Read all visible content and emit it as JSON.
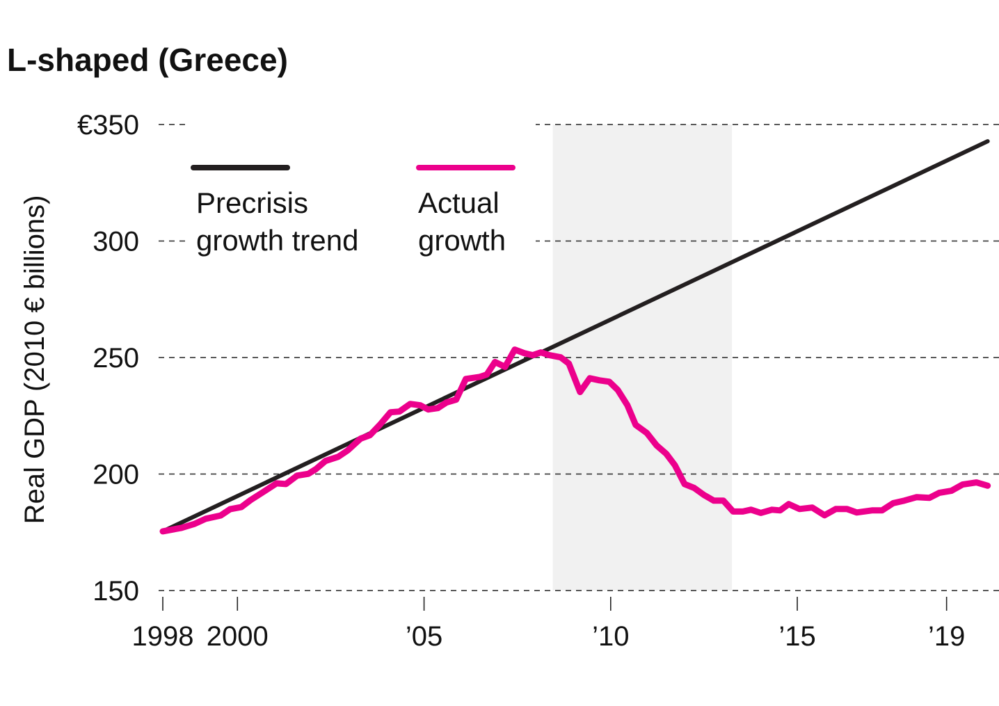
{
  "chart_data": {
    "type": "line",
    "title": "L-shaped (Greece)",
    "xlabel": "",
    "ylabel": "Real GDP (2010 € billions)",
    "ylim": [
      150,
      350
    ],
    "xlim": [
      1998,
      2020.2
    ],
    "grid": true,
    "grid_style": "dashed horizontal",
    "legend_placement": "top-left",
    "y_ticks": [
      {
        "value": 350,
        "label": "€350"
      },
      {
        "value": 300,
        "label": "300"
      },
      {
        "value": 250,
        "label": "250"
      },
      {
        "value": 200,
        "label": "200"
      },
      {
        "value": 150,
        "label": "150"
      }
    ],
    "x_ticks": [
      {
        "value": 1998,
        "label": "1998"
      },
      {
        "value": 2000,
        "label": "2000"
      },
      {
        "value": 2005,
        "label": "’05"
      },
      {
        "value": 2010,
        "label": "’10"
      },
      {
        "value": 2015,
        "label": "’15"
      },
      {
        "value": 2019,
        "label": "’19"
      }
    ],
    "shaded_region": {
      "x_start": 2008.45,
      "x_end": 2013.25,
      "color": "#f1f1f1"
    },
    "series": [
      {
        "name": "Precrisis growth trend",
        "legend_lines": [
          "Precrisis",
          "growth trend"
        ],
        "color": "#231f20",
        "x": [
          1998.0,
          2020.1
        ],
        "values": [
          175.4,
          342.8
        ]
      },
      {
        "name": "Actual growth",
        "legend_lines": [
          "Actual",
          "growth"
        ],
        "color": "#ec008c",
        "x": [
          1998.0,
          1998.3,
          1998.5,
          1998.85,
          1999.15,
          1999.55,
          1999.8,
          2000.1,
          2000.35,
          2000.7,
          2001.05,
          2001.3,
          2001.6,
          2001.9,
          2002.1,
          2002.36,
          2002.7,
          2002.95,
          2003.3,
          2003.55,
          2003.82,
          2004.1,
          2004.34,
          2004.63,
          2004.9,
          2005.11,
          2005.37,
          2005.6,
          2005.86,
          2006.12,
          2006.5,
          2006.68,
          2006.9,
          2007.17,
          2007.43,
          2007.68,
          2007.91,
          2008.13,
          2008.36,
          2008.66,
          2008.88,
          2009.18,
          2009.44,
          2009.7,
          2009.96,
          2010.19,
          2010.45,
          2010.67,
          2010.97,
          2011.23,
          2011.49,
          2011.72,
          2011.98,
          2012.24,
          2012.5,
          2012.76,
          2013.02,
          2013.28,
          2013.54,
          2013.76,
          2014.02,
          2014.32,
          2014.54,
          2014.77,
          2015.06,
          2015.4,
          2015.73,
          2016.03,
          2016.33,
          2016.59,
          2017.0,
          2017.27,
          2017.57,
          2017.87,
          2018.2,
          2018.54,
          2018.8,
          2019.13,
          2019.43,
          2019.8,
          2020.1
        ],
        "values": [
          175.4,
          176.3,
          176.9,
          178.6,
          180.8,
          182.2,
          184.9,
          185.8,
          188.8,
          192.4,
          196.0,
          195.7,
          199.3,
          200.1,
          202.1,
          205.6,
          207.4,
          210.1,
          215.2,
          216.7,
          221.2,
          226.5,
          226.8,
          230.1,
          229.5,
          227.7,
          228.3,
          230.7,
          231.9,
          240.8,
          241.7,
          242.7,
          248.1,
          246.0,
          253.4,
          251.9,
          251.0,
          252.2,
          251.0,
          250.1,
          247.4,
          235.2,
          241.1,
          240.2,
          239.6,
          236.1,
          229.5,
          221.1,
          217.6,
          212.3,
          208.7,
          203.8,
          195.7,
          194.0,
          191.0,
          188.6,
          188.6,
          183.9,
          183.9,
          184.7,
          183.3,
          184.7,
          184.4,
          187.1,
          185.0,
          185.6,
          182.3,
          185.0,
          185.0,
          183.5,
          184.4,
          184.4,
          187.5,
          188.6,
          190.1,
          189.8,
          191.9,
          192.8,
          195.5,
          196.4,
          195.0
        ]
      }
    ]
  }
}
